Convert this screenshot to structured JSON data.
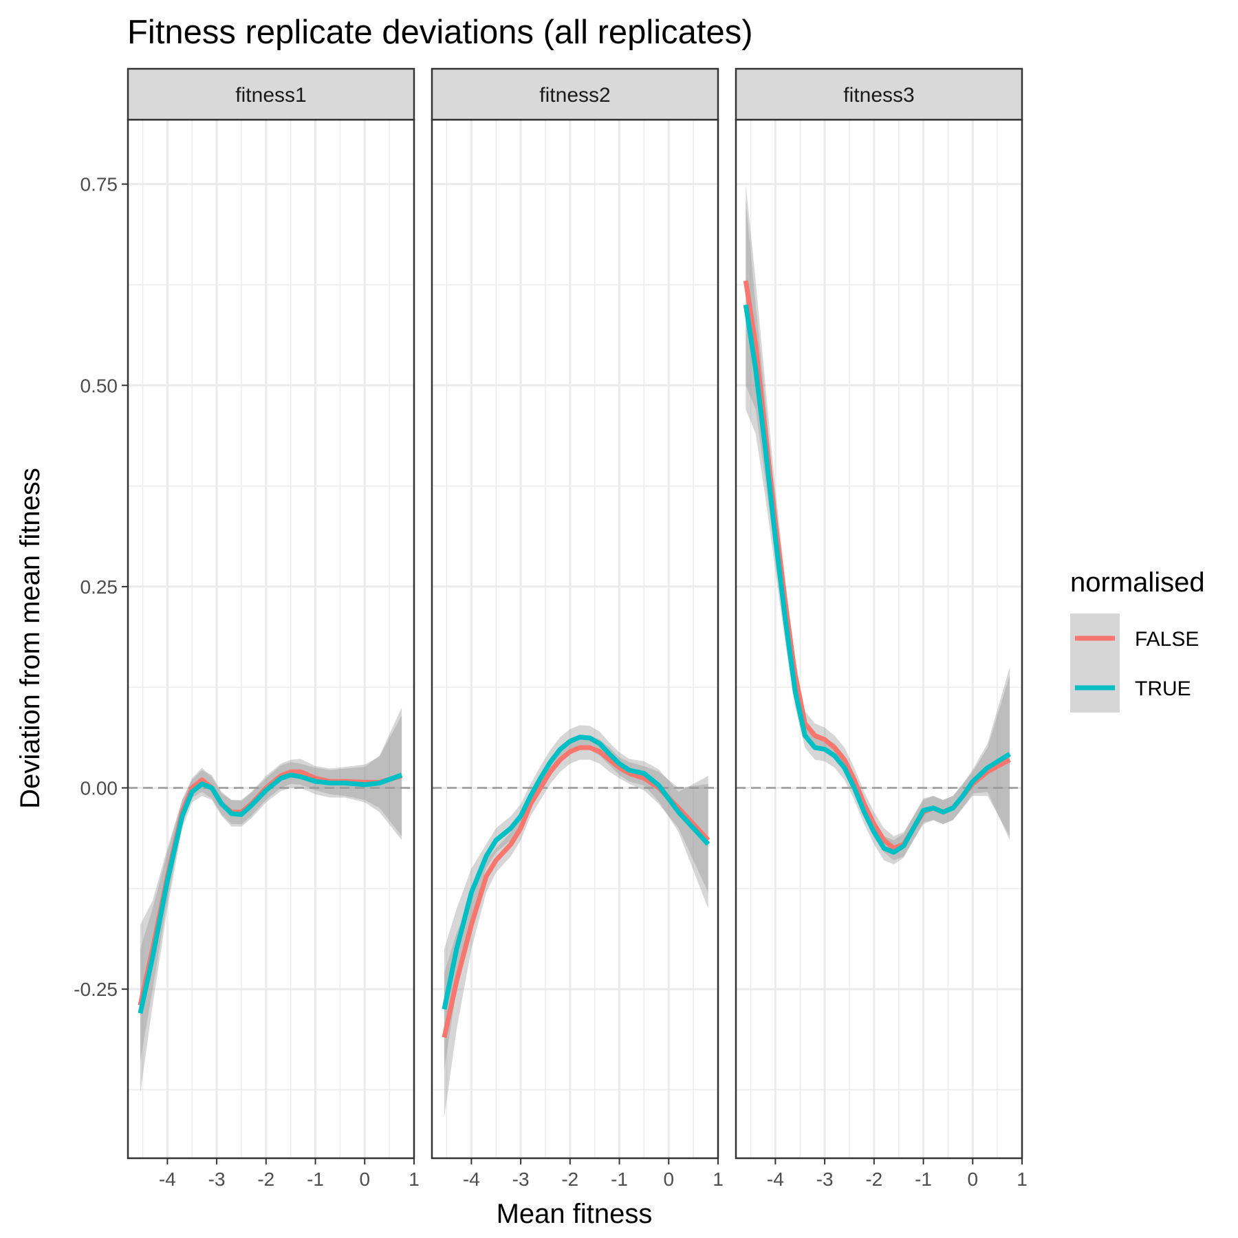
{
  "chart_data": {
    "type": "line",
    "title": "Fitness replicate deviations (all replicates)",
    "xlabel": "Mean fitness",
    "ylabel": "Deviation from mean fitness",
    "xlim": [
      -4.8,
      1.0
    ],
    "ylim": [
      -0.46,
      0.83
    ],
    "x_ticks": [
      -4,
      -3,
      -2,
      -1,
      0,
      1
    ],
    "x_tick_labels": [
      "-4",
      "-3",
      "-2",
      "-1",
      "0",
      "1"
    ],
    "y_ticks": [
      -0.25,
      0,
      0.25,
      0.5,
      0.75
    ],
    "y_tick_labels": [
      "-0.25",
      "0.00",
      "0.25",
      "0.50",
      "0.75"
    ],
    "reference_line": {
      "y": 0,
      "style": "dashed"
    },
    "grid": true,
    "legend": {
      "title": "normalised",
      "position": "right",
      "entries": [
        {
          "label": "FALSE",
          "color": "#F8766D"
        },
        {
          "label": "TRUE",
          "color": "#00BFC4"
        }
      ]
    },
    "facets": [
      {
        "label": "fitness1",
        "series": [
          {
            "name": "FALSE",
            "color": "#F8766D",
            "x": [
              -4.55,
              -4.3,
              -4.0,
              -3.7,
              -3.5,
              -3.3,
              -3.1,
              -2.9,
              -2.7,
              -2.5,
              -2.3,
              -2.0,
              -1.7,
              -1.5,
              -1.3,
              -1.0,
              -0.7,
              -0.4,
              0.0,
              0.3,
              0.75
            ],
            "y": [
              -0.27,
              -0.2,
              -0.11,
              -0.03,
              0.0,
              0.01,
              0.0,
              -0.02,
              -0.03,
              -0.03,
              -0.02,
              0.0,
              0.015,
              0.02,
              0.02,
              0.012,
              0.008,
              0.008,
              0.007,
              0.007,
              0.015
            ],
            "ci_low": [
              -0.34,
              -0.25,
              -0.14,
              -0.045,
              -0.012,
              -0.005,
              -0.013,
              -0.033,
              -0.045,
              -0.045,
              -0.035,
              -0.015,
              0.0,
              0.005,
              0.004,
              -0.003,
              -0.008,
              -0.01,
              -0.015,
              -0.025,
              -0.06
            ],
            "ci_high": [
              -0.2,
              -0.15,
              -0.08,
              -0.015,
              0.012,
              0.025,
              0.013,
              -0.007,
              -0.015,
              -0.015,
              -0.005,
              0.015,
              0.03,
              0.035,
              0.036,
              0.027,
              0.024,
              0.026,
              0.029,
              0.039,
              0.09
            ]
          },
          {
            "name": "TRUE",
            "color": "#00BFC4",
            "x": [
              -4.55,
              -4.3,
              -4.0,
              -3.7,
              -3.5,
              -3.3,
              -3.1,
              -2.9,
              -2.7,
              -2.5,
              -2.3,
              -2.0,
              -1.7,
              -1.5,
              -1.3,
              -1.0,
              -0.7,
              -0.4,
              0.0,
              0.3,
              0.75
            ],
            "y": [
              -0.28,
              -0.21,
              -0.115,
              -0.035,
              -0.005,
              0.005,
              0.0,
              -0.02,
              -0.032,
              -0.033,
              -0.022,
              -0.003,
              0.012,
              0.016,
              0.014,
              0.008,
              0.006,
              0.006,
              0.004,
              0.006,
              0.016
            ],
            "ci_low": [
              -0.38,
              -0.27,
              -0.15,
              -0.05,
              -0.018,
              -0.01,
              -0.015,
              -0.035,
              -0.048,
              -0.048,
              -0.038,
              -0.018,
              -0.004,
              0.0,
              0.0,
              -0.008,
              -0.012,
              -0.012,
              -0.018,
              -0.03,
              -0.065
            ],
            "ci_high": [
              -0.17,
              -0.14,
              -0.075,
              -0.015,
              0.01,
              0.022,
              0.016,
              -0.005,
              -0.015,
              -0.016,
              -0.006,
              0.012,
              0.028,
              0.032,
              0.03,
              0.025,
              0.022,
              0.024,
              0.026,
              0.04,
              0.1
            ]
          }
        ]
      },
      {
        "label": "fitness2",
        "series": [
          {
            "name": "FALSE",
            "color": "#F8766D",
            "x": [
              -4.55,
              -4.3,
              -4.0,
              -3.7,
              -3.5,
              -3.2,
              -3.0,
              -2.8,
              -2.6,
              -2.4,
              -2.2,
              -2.0,
              -1.8,
              -1.6,
              -1.4,
              -1.2,
              -1.0,
              -0.8,
              -0.5,
              -0.2,
              0.2,
              0.8
            ],
            "y": [
              -0.31,
              -0.24,
              -0.17,
              -0.11,
              -0.09,
              -0.07,
              -0.05,
              -0.02,
              0.0,
              0.02,
              0.035,
              0.045,
              0.05,
              0.05,
              0.045,
              0.035,
              0.025,
              0.018,
              0.012,
              0.0,
              -0.025,
              -0.065
            ],
            "ci_low": [
              -0.41,
              -0.3,
              -0.2,
              -0.13,
              -0.105,
              -0.085,
              -0.065,
              -0.035,
              -0.015,
              0.005,
              0.02,
              0.03,
              0.035,
              0.035,
              0.03,
              0.02,
              0.012,
              0.005,
              -0.003,
              -0.02,
              -0.05,
              -0.13
            ],
            "ci_high": [
              -0.23,
              -0.18,
              -0.14,
              -0.09,
              -0.075,
              -0.055,
              -0.035,
              -0.005,
              0.015,
              0.035,
              0.05,
              0.06,
              0.065,
              0.065,
              0.06,
              0.05,
              0.038,
              0.032,
              0.027,
              0.02,
              0.0,
              0.005
            ]
          },
          {
            "name": "TRUE",
            "color": "#00BFC4",
            "x": [
              -4.55,
              -4.3,
              -4.0,
              -3.7,
              -3.5,
              -3.2,
              -3.0,
              -2.8,
              -2.6,
              -2.4,
              -2.2,
              -2.0,
              -1.8,
              -1.6,
              -1.4,
              -1.2,
              -1.0,
              -0.8,
              -0.5,
              -0.2,
              0.2,
              0.8
            ],
            "y": [
              -0.275,
              -0.2,
              -0.13,
              -0.085,
              -0.065,
              -0.05,
              -0.035,
              -0.01,
              0.012,
              0.032,
              0.048,
              0.058,
              0.063,
              0.062,
              0.055,
              0.042,
              0.03,
              0.022,
              0.018,
              0.003,
              -0.03,
              -0.07
            ],
            "ci_low": [
              -0.35,
              -0.25,
              -0.16,
              -0.1,
              -0.08,
              -0.065,
              -0.05,
              -0.025,
              -0.003,
              0.017,
              0.033,
              0.043,
              0.048,
              0.047,
              0.04,
              0.028,
              0.016,
              0.008,
              0.003,
              -0.017,
              -0.055,
              -0.15
            ],
            "ci_high": [
              -0.2,
              -0.15,
              -0.1,
              -0.07,
              -0.05,
              -0.035,
              -0.02,
              0.005,
              0.027,
              0.047,
              0.063,
              0.073,
              0.078,
              0.077,
              0.07,
              0.056,
              0.044,
              0.036,
              0.033,
              0.023,
              -0.005,
              0.015
            ]
          }
        ]
      },
      {
        "label": "fitness3",
        "series": [
          {
            "name": "FALSE",
            "color": "#F8766D",
            "x": [
              -4.6,
              -4.4,
              -4.2,
              -4.0,
              -3.8,
              -3.6,
              -3.4,
              -3.2,
              -3.0,
              -2.8,
              -2.6,
              -2.4,
              -2.2,
              -2.0,
              -1.8,
              -1.6,
              -1.4,
              -1.2,
              -1.0,
              -0.8,
              -0.6,
              -0.4,
              -0.2,
              0.0,
              0.3,
              0.75
            ],
            "y": [
              0.63,
              0.55,
              0.44,
              0.33,
              0.23,
              0.14,
              0.08,
              0.065,
              0.06,
              0.05,
              0.035,
              0.01,
              -0.02,
              -0.045,
              -0.065,
              -0.075,
              -0.07,
              -0.05,
              -0.03,
              -0.025,
              -0.03,
              -0.025,
              -0.01,
              0.005,
              0.02,
              0.035
            ],
            "ci_low": [
              0.5,
              0.47,
              0.38,
              0.29,
              0.2,
              0.12,
              0.065,
              0.05,
              0.045,
              0.035,
              0.02,
              -0.005,
              -0.035,
              -0.06,
              -0.08,
              -0.09,
              -0.085,
              -0.065,
              -0.045,
              -0.04,
              -0.045,
              -0.04,
              -0.025,
              -0.01,
              -0.01,
              -0.06
            ],
            "ci_high": [
              0.75,
              0.63,
              0.5,
              0.37,
              0.26,
              0.16,
              0.095,
              0.08,
              0.075,
              0.065,
              0.05,
              0.025,
              -0.005,
              -0.03,
              -0.05,
              -0.06,
              -0.055,
              -0.035,
              -0.015,
              -0.01,
              -0.015,
              -0.01,
              0.005,
              0.02,
              0.05,
              0.14
            ]
          },
          {
            "name": "TRUE",
            "color": "#00BFC4",
            "x": [
              -4.6,
              -4.4,
              -4.2,
              -4.0,
              -3.8,
              -3.6,
              -3.4,
              -3.2,
              -3.0,
              -2.8,
              -2.6,
              -2.4,
              -2.2,
              -2.0,
              -1.8,
              -1.6,
              -1.4,
              -1.2,
              -1.0,
              -0.8,
              -0.6,
              -0.4,
              -0.2,
              0.0,
              0.3,
              0.75
            ],
            "y": [
              0.6,
              0.52,
              0.42,
              0.31,
              0.21,
              0.12,
              0.065,
              0.05,
              0.048,
              0.04,
              0.025,
              0.0,
              -0.03,
              -0.055,
              -0.075,
              -0.08,
              -0.072,
              -0.05,
              -0.028,
              -0.025,
              -0.03,
              -0.025,
              -0.01,
              0.008,
              0.025,
              0.042
            ],
            "ci_low": [
              0.47,
              0.44,
              0.36,
              0.27,
              0.18,
              0.1,
              0.05,
              0.035,
              0.033,
              0.025,
              0.01,
              -0.015,
              -0.045,
              -0.07,
              -0.09,
              -0.095,
              -0.087,
              -0.065,
              -0.043,
              -0.04,
              -0.045,
              -0.04,
              -0.025,
              -0.007,
              -0.005,
              -0.065
            ],
            "ci_high": [
              0.73,
              0.6,
              0.48,
              0.35,
              0.24,
              0.14,
              0.08,
              0.065,
              0.063,
              0.055,
              0.04,
              0.015,
              -0.015,
              -0.04,
              -0.06,
              -0.065,
              -0.057,
              -0.035,
              -0.013,
              -0.01,
              -0.015,
              -0.01,
              0.005,
              0.023,
              0.055,
              0.15
            ]
          }
        ]
      }
    ]
  }
}
